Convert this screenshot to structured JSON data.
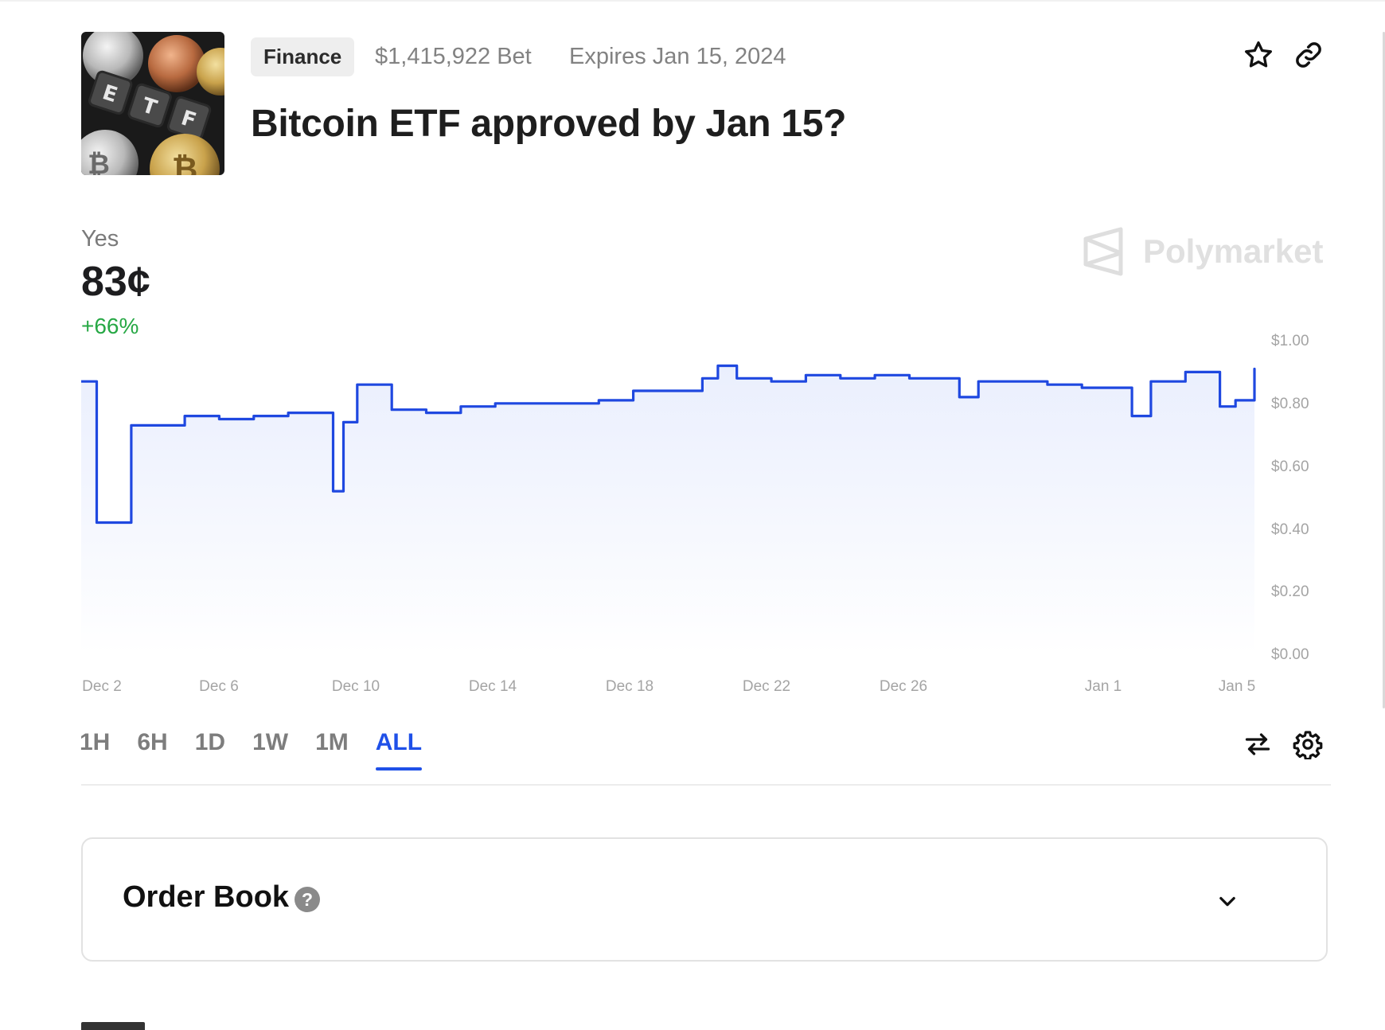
{
  "market": {
    "category": "Finance",
    "volume": "$1,415,922 Bet",
    "expires": "Expires Jan 15, 2024",
    "title": "Bitcoin ETF approved by Jan 15?",
    "thumbnail_icon": "bitcoin-etf-image"
  },
  "header_actions": {
    "favorite_icon": "star-icon",
    "share_icon": "link-icon"
  },
  "outcome": {
    "label": "Yes",
    "price": "83¢",
    "change": "+66%"
  },
  "watermark": {
    "text": "Polymarket",
    "icon": "polymarket-logo-icon"
  },
  "colors": {
    "accent": "#1f50e8",
    "positive": "#27a845",
    "line": "#1f48e0"
  },
  "chart_data": {
    "type": "line",
    "x_ticks": [
      "Dec 2",
      "Dec 6",
      "Dec 10",
      "Dec 14",
      "Dec 18",
      "Dec 22",
      "Dec 26",
      "Jan 1",
      "Jan 5"
    ],
    "y_ticks": [
      "$1.00",
      "$0.80",
      "$0.60",
      "$0.40",
      "$0.20",
      "$0.00"
    ],
    "ylim": [
      0,
      1
    ],
    "series": [
      {
        "x": [
          "Dec 2",
          "Dec 2",
          "Dec 3",
          "Dec 3",
          "Dec 4",
          "Dec 5",
          "Dec 6",
          "Dec 7",
          "Dec 8",
          "Dec 9",
          "Dec 9",
          "Dec 9",
          "Dec 10",
          "Dec 11",
          "Dec 12",
          "Dec 13",
          "Dec 14",
          "Dec 15",
          "Dec 16",
          "Dec 17",
          "Dec 18",
          "Dec 19",
          "Dec 20",
          "Dec 20",
          "Dec 21",
          "Dec 22",
          "Dec 23",
          "Dec 24",
          "Dec 25",
          "Dec 26",
          "Dec 27",
          "Dec 27",
          "Dec 28",
          "Dec 29",
          "Dec 30",
          "Dec 31",
          "Jan 1",
          "Jan 1",
          "Jan 2",
          "Jan 3",
          "Jan 4",
          "Jan 4",
          "Jan 5",
          "Jan 5"
        ],
        "y": [
          0.87,
          0.42,
          0.42,
          0.73,
          0.73,
          0.76,
          0.75,
          0.76,
          0.77,
          0.77,
          0.52,
          0.74,
          0.86,
          0.78,
          0.77,
          0.79,
          0.8,
          0.8,
          0.8,
          0.81,
          0.84,
          0.84,
          0.88,
          0.92,
          0.88,
          0.87,
          0.89,
          0.88,
          0.89,
          0.88,
          0.88,
          0.82,
          0.87,
          0.87,
          0.86,
          0.85,
          0.85,
          0.76,
          0.87,
          0.9,
          0.79,
          0.81,
          0.91,
          0.83
        ]
      }
    ],
    "grid": false
  },
  "time_ranges": [
    {
      "label": "1H"
    },
    {
      "label": "6H"
    },
    {
      "label": "1D"
    },
    {
      "label": "1W"
    },
    {
      "label": "1M"
    },
    {
      "label": "ALL",
      "active": true
    }
  ],
  "chart_controls": {
    "swap_icon": "swap-arrows-icon",
    "settings_icon": "gear-icon"
  },
  "order_book": {
    "title": "Order Book",
    "help": "?",
    "chevron_icon": "chevron-down-icon"
  }
}
